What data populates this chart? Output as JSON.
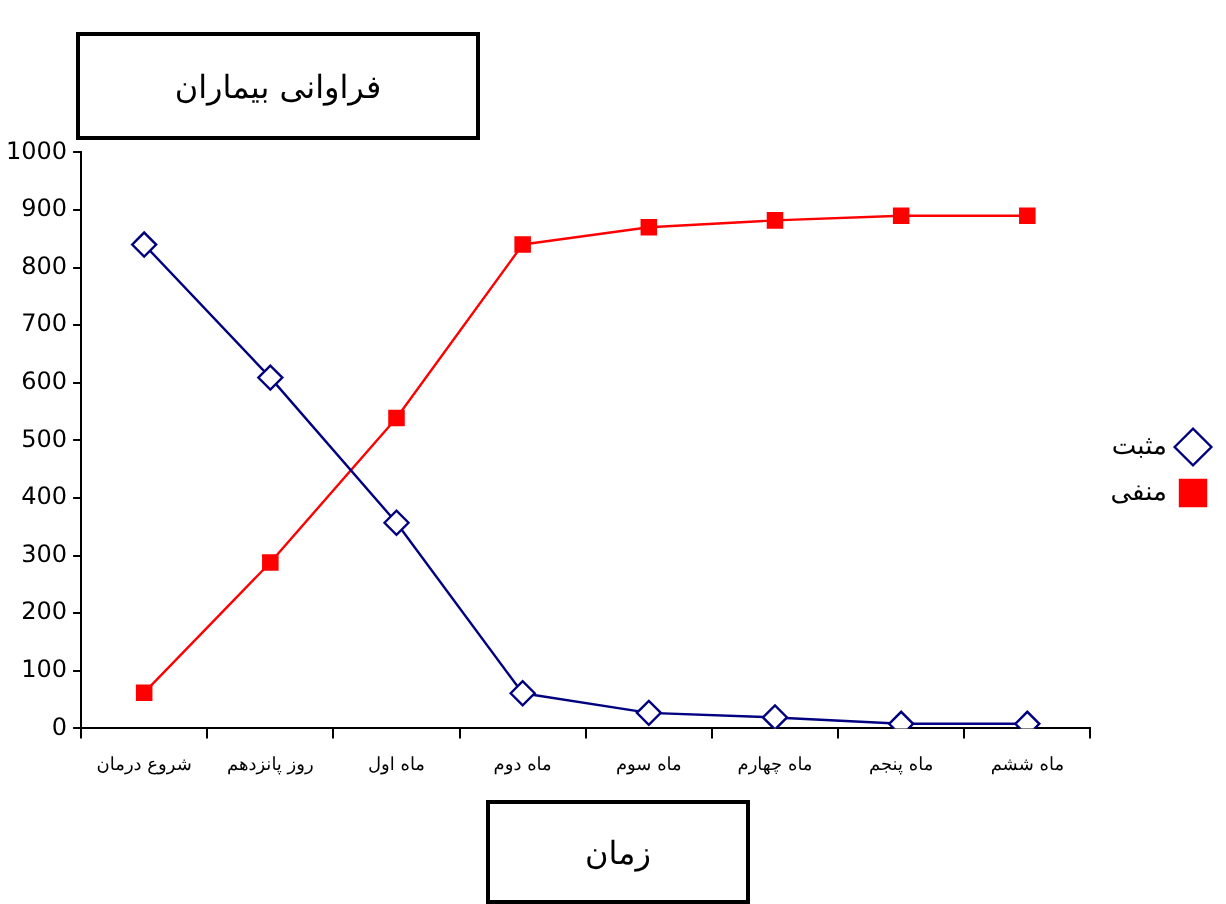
{
  "chart_data": {
    "type": "line",
    "title": "فراوانی بیماران",
    "xlabel": "زمان",
    "categories": [
      "شروع درمان",
      "روز پانزدهم",
      "ماه اول",
      "ماه دوم",
      "ماه سوم",
      "ماه چهارم",
      "ماه پنجم",
      "ماه ششم"
    ],
    "series": [
      {
        "name": "مثبت",
        "color": "#000080",
        "marker": "diamond",
        "values": [
          840,
          609,
          357,
          61,
          27,
          19,
          8,
          8
        ]
      },
      {
        "name": "منفی",
        "color": "#ff0000",
        "marker": "square",
        "values": [
          62,
          288,
          539,
          840,
          870,
          882,
          890,
          890
        ]
      }
    ],
    "ylim": [
      0,
      1000
    ],
    "yticks": [
      0,
      100,
      200,
      300,
      400,
      500,
      600,
      700,
      800,
      900,
      1000
    ],
    "grid": false,
    "legend": "right"
  }
}
